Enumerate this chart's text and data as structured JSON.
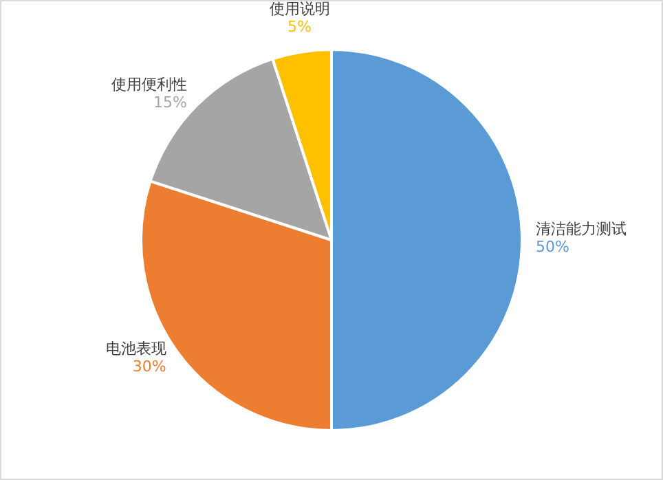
{
  "chart_data": {
    "type": "pie",
    "categories": [
      "清洁能力测试",
      "电池表现",
      "使用便利性",
      "使用说明"
    ],
    "values": [
      50,
      30,
      15,
      5
    ],
    "value_labels": [
      "50%",
      "30%",
      "15%",
      "5%"
    ],
    "colors": [
      "#5b9bd5",
      "#ed7d31",
      "#a5a5a5",
      "#ffc000"
    ],
    "legend": false
  }
}
